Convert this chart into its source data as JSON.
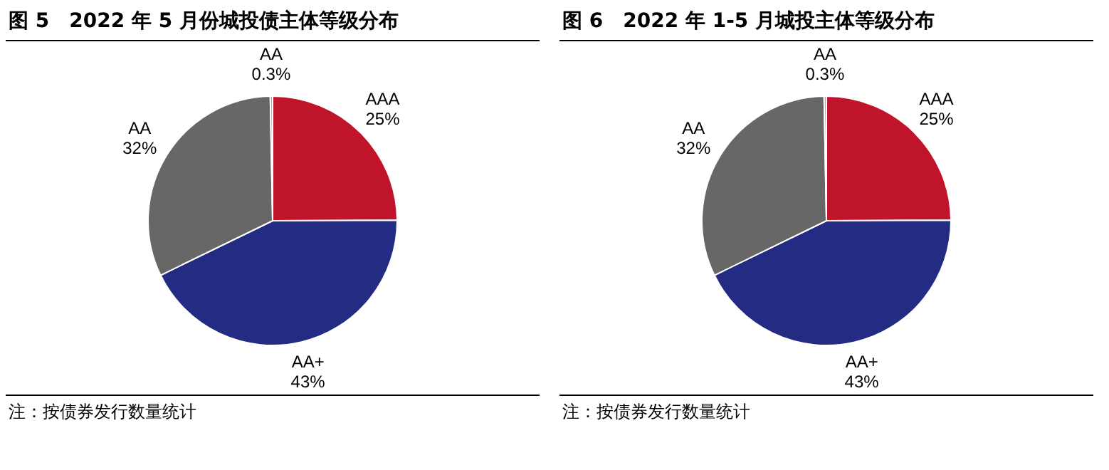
{
  "chart_data": [
    {
      "type": "pie",
      "title": "图 5　2022 年 5 月份城投债主体等级分布",
      "categories": [
        "AAA",
        "AA+",
        "AA",
        "AA"
      ],
      "values": [
        25,
        43,
        32,
        0.3
      ],
      "colors": [
        "#c0142b",
        "#232b83",
        "#676767",
        "#a6a6a6"
      ],
      "value_labels": [
        "25%",
        "43%",
        "32%",
        "0.3%"
      ],
      "legend": false,
      "annotations": [
        "注：按债券发行数量统计"
      ]
    },
    {
      "type": "pie",
      "title": "图 6　2022 年 1-5 月城投主体等级分布",
      "categories": [
        "AAA",
        "AA+",
        "AA",
        "AA"
      ],
      "values": [
        25,
        43,
        32,
        0.3
      ],
      "colors": [
        "#c0142b",
        "#232b83",
        "#676767",
        "#a6a6a6"
      ],
      "value_labels": [
        "25%",
        "43%",
        "32%",
        "0.3%"
      ],
      "legend": false,
      "annotations": [
        "注：按债券发行数量统计"
      ]
    }
  ]
}
